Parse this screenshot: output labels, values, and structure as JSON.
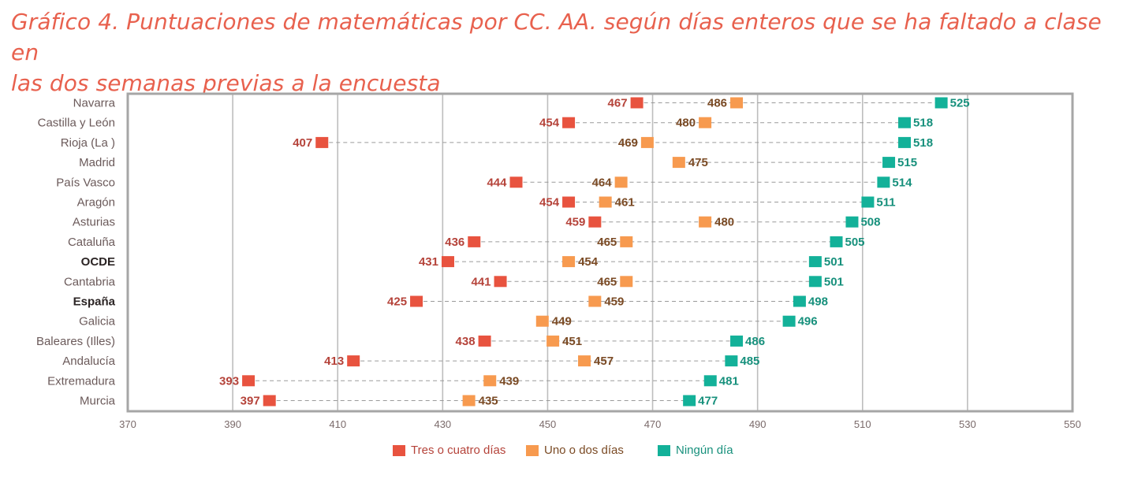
{
  "title": {
    "line1": "Gráfico 4. Puntuaciones de matemáticas por CC. AA. según días enteros que se ha faltado a clase en",
    "line2": "las dos semanas previas a la encuesta"
  },
  "colors": {
    "tres": "#e8533f",
    "uno": "#f79a4f",
    "ninguno": "#13b199",
    "tres_text": "#b5433a",
    "uno_text": "#7a4a24",
    "ninguno_text": "#17907c",
    "title": "#e8614e",
    "grid": "#bdbdbd",
    "frame": "#a6a6a6",
    "tick_text": "#7a6a6a",
    "category_text": "#6b5a5a",
    "category_bold_text": "#2b2424"
  },
  "chart_data": {
    "type": "dot",
    "xlim": [
      370,
      550
    ],
    "xticks": [
      "370",
      "390",
      "410",
      "430",
      "450",
      "470",
      "490",
      "510",
      "530",
      "550"
    ],
    "categories": [
      "Navarra",
      "Castilla y León",
      "Rioja (La )",
      "Madrid",
      "País Vasco",
      "Aragón",
      "Asturias",
      "Cataluña",
      "OCDE",
      "Cantabria",
      "España",
      "Galicia",
      "Baleares (Illes)",
      "Andalucía",
      "Extremadura",
      "Murcia"
    ],
    "bold_categories": [
      "OCDE",
      "España"
    ],
    "grid": true,
    "legend_position": "bottom",
    "series": [
      {
        "name": "Tres o cuatro días",
        "key": "tres",
        "values": [
          467,
          454,
          407,
          null,
          444,
          454,
          459,
          436,
          431,
          441,
          425,
          null,
          438,
          413,
          393,
          397
        ]
      },
      {
        "name": "Uno o dos días",
        "key": "uno",
        "values": [
          486,
          480,
          469,
          475,
          464,
          461,
          480,
          465,
          454,
          465,
          459,
          449,
          451,
          457,
          439,
          435
        ]
      },
      {
        "name": "Ningún día",
        "key": "ninguno",
        "values": [
          525,
          518,
          518,
          515,
          514,
          511,
          508,
          505,
          501,
          501,
          498,
          496,
          486,
          485,
          481,
          477
        ]
      }
    ]
  }
}
